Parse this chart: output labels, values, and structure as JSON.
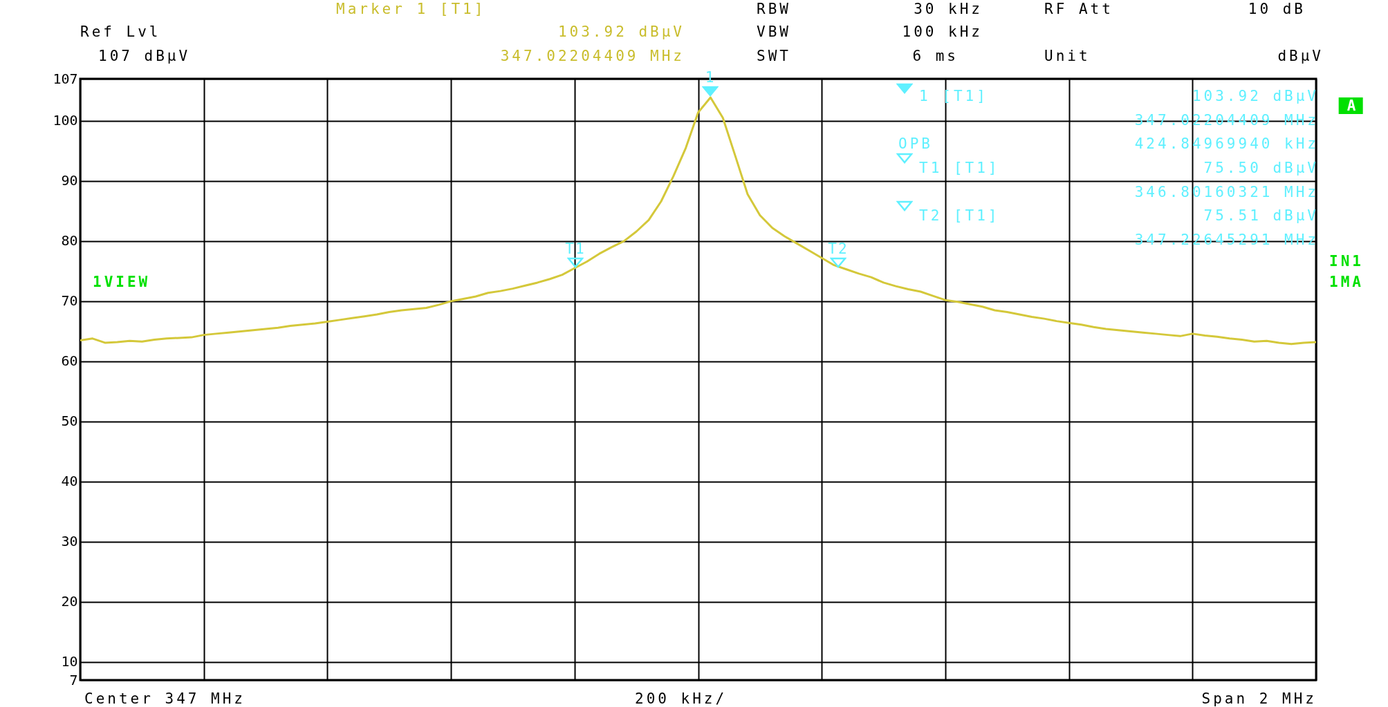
{
  "chart_data": {
    "type": "line",
    "categories": [
      null,
      null,
      null,
      null,
      null,
      null,
      null,
      null,
      null,
      null,
      null,
      null,
      null,
      null,
      null,
      null,
      null,
      null,
      null,
      null,
      null,
      null,
      null,
      null,
      null,
      null,
      null,
      null,
      null,
      null,
      null,
      null,
      null,
      null,
      null,
      null,
      null,
      null,
      null,
      null,
      null,
      null,
      null,
      null,
      null,
      null,
      null,
      null,
      null,
      null,
      null,
      null,
      null,
      null,
      null,
      null,
      null,
      null,
      null,
      null,
      null,
      null,
      null,
      null,
      null,
      null,
      null,
      null,
      null,
      null,
      null,
      null,
      null,
      null,
      null,
      null,
      null,
      null,
      null,
      null,
      null,
      null,
      null,
      null,
      null,
      null,
      null,
      null,
      null,
      null,
      null,
      null,
      null,
      null,
      null,
      null,
      null,
      null,
      null,
      null,
      null
    ],
    "series": [
      {
        "color": "#d4c83a",
        "values": [
          63.5,
          63.8,
          63.1,
          63.2,
          63.4,
          63.3,
          63.6,
          63.8,
          63.9,
          64.0,
          64.4,
          64.6,
          64.8,
          65.0,
          65.2,
          65.4,
          65.6,
          65.9,
          66.1,
          66.3,
          66.6,
          66.9,
          67.2,
          67.5,
          67.8,
          68.2,
          68.5,
          68.7,
          68.9,
          69.4,
          70.0,
          70.4,
          70.8,
          71.4,
          71.7,
          72.1,
          72.6,
          73.1,
          73.7,
          74.4,
          75.5,
          76.6,
          77.9,
          79.0,
          80.0,
          81.6,
          83.5,
          86.6,
          90.8,
          95.5,
          101.4,
          103.9,
          100.5,
          94.2,
          87.8,
          84.3,
          82.2,
          80.8,
          79.6,
          78.4,
          77.2,
          76.0,
          75.3,
          74.6,
          74.0,
          73.1,
          72.5,
          72.0,
          71.6,
          70.9,
          70.2,
          69.9,
          69.5,
          69.1,
          68.5,
          68.2,
          67.8,
          67.4,
          67.1,
          66.7,
          66.4,
          66.1,
          65.7,
          65.4,
          65.2,
          65.0,
          64.8,
          64.6,
          64.4,
          64.2,
          64.6,
          64.3,
          64.1,
          63.8,
          63.6,
          63.3,
          63.4,
          63.1,
          62.9,
          63.1,
          63.2
        ]
      }
    ],
    "ylim": [
      7,
      107
    ],
    "yticks": [
      7,
      10,
      20,
      30,
      40,
      50,
      60,
      70,
      80,
      90,
      100,
      107
    ],
    "grid": true,
    "tick_labels": "y",
    "annotations": [
      "Marker 1 [T1]",
      "103.92 dBµV",
      "347.02204409 MHz",
      "Ref Lvl",
      "107 dBµV",
      "RBW",
      "30 kHz",
      "VBW",
      "100 kHz",
      "SWT",
      "6 ms",
      "RF Att",
      "10 dB",
      "Unit",
      "dBµV",
      "1 [T1]",
      "103.92 dBµV",
      "347.02204409 MHz",
      "OPB",
      "424.84969940 kHz",
      "T1 [T1]",
      "75.50 dBµV",
      "346.80160321 MHz",
      "T2 [T1]",
      "75.51 dBµV",
      "347.22645291 MHz",
      "A",
      "IN1",
      "1MA",
      "1VIEW",
      "Center 347 MHz",
      "200 kHz/",
      "Span 2 MHz",
      "1",
      "T1",
      "T2"
    ]
  }
}
